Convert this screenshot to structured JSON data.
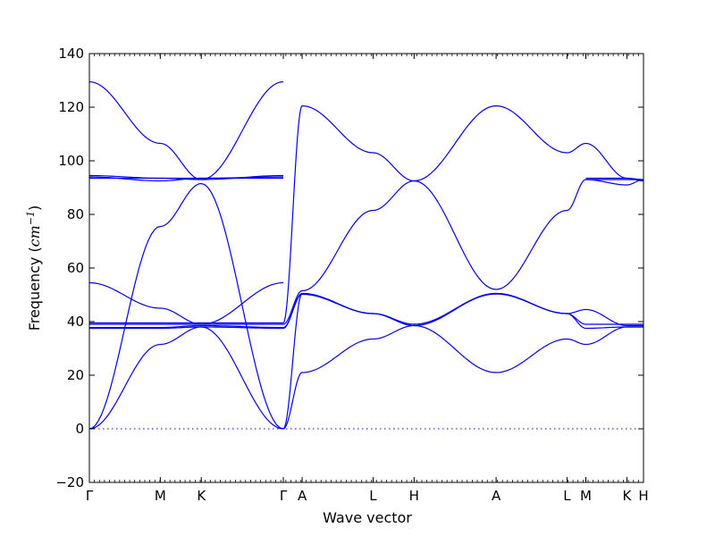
{
  "chart_data": {
    "type": "line",
    "title": "",
    "xlabel": "Wave vector",
    "ylabel_prefix": "Frequency (",
    "ylabel_unit": "cm",
    "ylabel_exp": "−1",
    "ylabel_suffix": ")",
    "ylim": [
      -20,
      140
    ],
    "yticks": [
      -20,
      0,
      20,
      40,
      60,
      80,
      100,
      120,
      140
    ],
    "grid": false,
    "xlim": [
      0,
      1
    ],
    "path_ticks": [
      {
        "label": "Γ",
        "x": 0.0
      },
      {
        "label": "M",
        "x": 0.128
      },
      {
        "label": "K",
        "x": 0.202
      },
      {
        "label": "Γ",
        "x": 0.35
      },
      {
        "label": "A",
        "x": 0.384
      },
      {
        "label": "L",
        "x": 0.512
      },
      {
        "label": "H",
        "x": 0.586
      },
      {
        "label": "A",
        "x": 0.734
      },
      {
        "label": "L",
        "x": 0.862
      },
      {
        "label": "M",
        "x": 0.896
      },
      {
        "label": "K",
        "x": 0.97
      },
      {
        "label": "H",
        "x": 1.0
      }
    ],
    "zero_line": {
      "y": 0,
      "style": "dotted"
    },
    "line_color": "#0000ee",
    "series": [
      {
        "points": [
          [
            0,
            0
          ],
          [
            0.128,
            31.5
          ],
          [
            0.202,
            38.0
          ],
          [
            0.35,
            0
          ],
          [
            0.384,
            21.0
          ],
          [
            0.512,
            33.5
          ],
          [
            0.586,
            38.5
          ],
          [
            0.734,
            21.0
          ],
          [
            0.862,
            33.5
          ],
          [
            0.896,
            31.5
          ],
          [
            0.97,
            38.0
          ],
          [
            1.0,
            38.0
          ]
        ]
      },
      {
        "points": [
          [
            0,
            0
          ],
          [
            0.128,
            75.5
          ],
          [
            0.202,
            91.5
          ],
          [
            0.35,
            0
          ],
          [
            0.384,
            50.5
          ],
          [
            0.512,
            43.0
          ],
          [
            0.586,
            39.0
          ],
          [
            0.734,
            50.5
          ],
          [
            0.862,
            43.0
          ],
          [
            0.896,
            37.5
          ],
          [
            0.97,
            38.0
          ],
          [
            1.0,
            38.0
          ]
        ]
      },
      {
        "points": [
          [
            0,
            37.5
          ],
          [
            0.128,
            37.5
          ],
          [
            0.202,
            38.0
          ],
          [
            0.35,
            37.5
          ],
          [
            0.384,
            50.5
          ],
          [
            0.512,
            43.0
          ],
          [
            0.586,
            38.5
          ],
          [
            0.734,
            50.5
          ],
          [
            0.862,
            43.0
          ],
          [
            0.896,
            44.5
          ],
          [
            0.97,
            38.5
          ],
          [
            1.0,
            38.5
          ]
        ]
      },
      {
        "points": [
          [
            0,
            37.8
          ],
          [
            0.128,
            37.8
          ],
          [
            0.202,
            38.5
          ],
          [
            0.35,
            37.8
          ],
          [
            0.384,
            50.2
          ],
          [
            0.512,
            43.0
          ],
          [
            0.586,
            39.0
          ],
          [
            0.734,
            50.3
          ],
          [
            0.862,
            43.0
          ],
          [
            0.896,
            39.0
          ],
          [
            0.97,
            39.0
          ],
          [
            1.0,
            39.0
          ]
        ]
      },
      {
        "points": [
          [
            0,
            39.0
          ],
          [
            0.128,
            39.0
          ],
          [
            0.202,
            39.0
          ],
          [
            0.35,
            39.0
          ],
          [
            0.384,
            51.5
          ],
          [
            0.512,
            81.5
          ],
          [
            0.586,
            92.5
          ],
          [
            0.734,
            52.0
          ],
          [
            0.862,
            81.5
          ],
          [
            0.896,
            93.0
          ],
          [
            0.97,
            91.0
          ],
          [
            1.0,
            93.0
          ]
        ]
      },
      {
        "points": [
          [
            0,
            39.5
          ],
          [
            0.128,
            39.5
          ],
          [
            0.202,
            39.5
          ],
          [
            0.35,
            39.5
          ],
          [
            0.384,
            120.5
          ],
          [
            0.512,
            103.0
          ],
          [
            0.586,
            92.5
          ],
          [
            0.734,
            120.5
          ],
          [
            0.862,
            103.0
          ],
          [
            0.896,
            106.5
          ],
          [
            0.97,
            93.5
          ],
          [
            1.0,
            93.0
          ]
        ]
      },
      {
        "points": [
          [
            0,
            54.5
          ],
          [
            0.128,
            45.0
          ],
          [
            0.202,
            39.0
          ],
          [
            0.35,
            54.5
          ]
        ]
      },
      {
        "points": [
          [
            0,
            93.5
          ],
          [
            0.128,
            93.5
          ],
          [
            0.202,
            93.5
          ],
          [
            0.35,
            93.5
          ]
        ]
      },
      {
        "points": [
          [
            0,
            94.0
          ],
          [
            0.128,
            92.5
          ],
          [
            0.202,
            93.5
          ],
          [
            0.35,
            94.0
          ]
        ]
      },
      {
        "points": [
          [
            0,
            94.5
          ],
          [
            0.128,
            93.5
          ],
          [
            0.202,
            93.0
          ],
          [
            0.35,
            94.5
          ]
        ]
      },
      {
        "points": [
          [
            0,
            129.5
          ],
          [
            0.128,
            106.5
          ],
          [
            0.202,
            93.0
          ],
          [
            0.35,
            129.5
          ]
        ]
      },
      {
        "points": [
          [
            0.896,
            93.5
          ],
          [
            0.97,
            93.5
          ],
          [
            1.0,
            92.5
          ]
        ]
      },
      {
        "points": [
          [
            0.896,
            93.0
          ],
          [
            0.97,
            93.0
          ],
          [
            1.0,
            93.0
          ]
        ]
      }
    ]
  }
}
